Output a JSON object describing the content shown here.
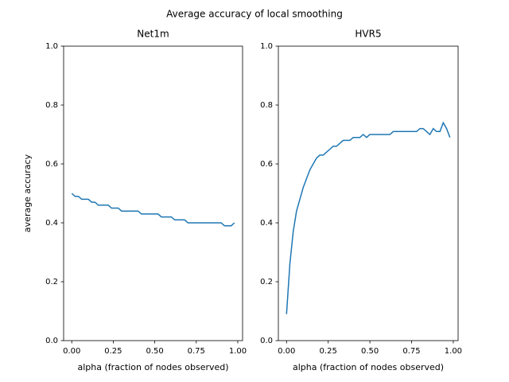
{
  "title": "Average accuracy of local smoothing",
  "chart_data": [
    {
      "type": "line",
      "title": "Net1m",
      "xlabel": "alpha (fraction of nodes observed)",
      "ylabel": "average accuracy",
      "x": [
        0,
        0.02,
        0.04,
        0.06,
        0.08,
        0.1,
        0.12,
        0.14,
        0.16,
        0.18,
        0.2,
        0.22,
        0.24,
        0.26,
        0.28,
        0.3,
        0.32,
        0.34,
        0.36,
        0.38,
        0.4,
        0.42,
        0.44,
        0.46,
        0.48,
        0.5,
        0.52,
        0.54,
        0.56,
        0.58,
        0.6,
        0.62,
        0.64,
        0.66,
        0.68,
        0.7,
        0.72,
        0.74,
        0.76,
        0.78,
        0.8,
        0.82,
        0.84,
        0.86,
        0.88,
        0.9,
        0.92,
        0.94,
        0.96,
        0.98
      ],
      "series": [
        {
          "color": "#1f77b4",
          "values": [
            0.5,
            0.49,
            0.49,
            0.48,
            0.48,
            0.48,
            0.47,
            0.47,
            0.46,
            0.46,
            0.46,
            0.46,
            0.45,
            0.45,
            0.45,
            0.44,
            0.44,
            0.44,
            0.44,
            0.44,
            0.44,
            0.43,
            0.43,
            0.43,
            0.43,
            0.43,
            0.43,
            0.42,
            0.42,
            0.42,
            0.42,
            0.41,
            0.41,
            0.41,
            0.41,
            0.4,
            0.4,
            0.4,
            0.4,
            0.4,
            0.4,
            0.4,
            0.4,
            0.4,
            0.4,
            0.4,
            0.39,
            0.39,
            0.39,
            0.4
          ]
        }
      ],
      "xlim": [
        -0.049,
        1.029
      ],
      "ylim": [
        0,
        1
      ],
      "xticks": [
        {
          "value": 0,
          "label": "0.00"
        },
        {
          "value": 0.25,
          "label": "0.25"
        },
        {
          "value": 0.5,
          "label": "0.50"
        },
        {
          "value": 0.75,
          "label": "0.75"
        },
        {
          "value": 1,
          "label": "1.00"
        }
      ],
      "yticks": [
        {
          "value": 0,
          "label": "0.0"
        },
        {
          "value": 0.2,
          "label": "0.2"
        },
        {
          "value": 0.4,
          "label": "0.4"
        },
        {
          "value": 0.6,
          "label": "0.6"
        },
        {
          "value": 0.8,
          "label": "0.8"
        },
        {
          "value": 1,
          "label": "1.0"
        }
      ]
    },
    {
      "type": "line",
      "title": "HVR5",
      "xlabel": "alpha (fraction of nodes observed)",
      "x": [
        0,
        0.02,
        0.04,
        0.06,
        0.08,
        0.1,
        0.12,
        0.14,
        0.16,
        0.18,
        0.2,
        0.22,
        0.24,
        0.26,
        0.28,
        0.3,
        0.32,
        0.34,
        0.36,
        0.38,
        0.4,
        0.42,
        0.44,
        0.46,
        0.48,
        0.5,
        0.52,
        0.54,
        0.56,
        0.58,
        0.6,
        0.62,
        0.64,
        0.66,
        0.68,
        0.7,
        0.72,
        0.74,
        0.76,
        0.78,
        0.8,
        0.82,
        0.84,
        0.86,
        0.88,
        0.9,
        0.92,
        0.94,
        0.96,
        0.98
      ],
      "series": [
        {
          "color": "#1f77b4",
          "values": [
            0.09,
            0.26,
            0.37,
            0.44,
            0.48,
            0.52,
            0.55,
            0.58,
            0.6,
            0.62,
            0.63,
            0.63,
            0.64,
            0.65,
            0.66,
            0.66,
            0.67,
            0.68,
            0.68,
            0.68,
            0.69,
            0.69,
            0.69,
            0.7,
            0.69,
            0.7,
            0.7,
            0.7,
            0.7,
            0.7,
            0.7,
            0.7,
            0.71,
            0.71,
            0.71,
            0.71,
            0.71,
            0.71,
            0.71,
            0.71,
            0.72,
            0.72,
            0.71,
            0.7,
            0.72,
            0.71,
            0.71,
            0.74,
            0.72,
            0.69
          ]
        }
      ],
      "xlim": [
        -0.049,
        1.029
      ],
      "ylim": [
        0,
        1
      ],
      "xticks": [
        {
          "value": 0,
          "label": "0.00"
        },
        {
          "value": 0.25,
          "label": "0.25"
        },
        {
          "value": 0.5,
          "label": "0.50"
        },
        {
          "value": 0.75,
          "label": "0.75"
        },
        {
          "value": 1,
          "label": "1.00"
        }
      ],
      "yticks": [
        {
          "value": 0,
          "label": "0.0"
        },
        {
          "value": 0.2,
          "label": "0.2"
        },
        {
          "value": 0.4,
          "label": "0.4"
        },
        {
          "value": 0.6,
          "label": "0.6"
        },
        {
          "value": 0.8,
          "label": "0.8"
        },
        {
          "value": 1,
          "label": "1.0"
        }
      ]
    }
  ]
}
